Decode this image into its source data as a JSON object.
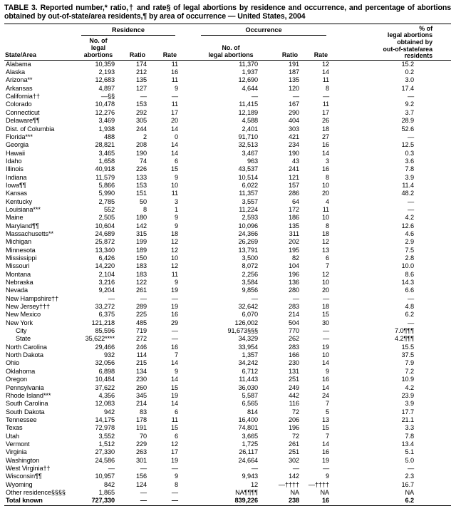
{
  "title": "TABLE 3. Reported number,* ratio,† and rate§ of legal abortions by residence and occurrence, and percentage of abortions obtained by out-of-state/area residents,¶ by area of occurrence — United States, 2004",
  "table": {
    "group_headers": {
      "residence": "Residence",
      "occurrence": "Occurrence"
    },
    "col_headers": {
      "state": "State/Area",
      "res_no": "No. of\nlegal abortions",
      "res_ratio": "Ratio",
      "res_rate": "Rate",
      "occ_no": "No. of\nlegal abortions",
      "occ_ratio": "Ratio",
      "occ_rate": "Rate",
      "pct": "% of\nlegal abortions\nobtained by\nout-of-state/area\nresidents"
    },
    "rows": [
      {
        "label": "Alabama",
        "values": [
          "10,359",
          "174",
          "11",
          "11,370",
          "191",
          "12",
          "15.2"
        ]
      },
      {
        "label": "Alaska",
        "values": [
          "2,193",
          "212",
          "16",
          "1,937",
          "187",
          "14",
          "0.2"
        ]
      },
      {
        "label": "Arizona**",
        "values": [
          "12,683",
          "135",
          "11",
          "12,690",
          "135",
          "11",
          "3.0"
        ]
      },
      {
        "label": "Arkansas",
        "values": [
          "4,897",
          "127",
          "9",
          "4,644",
          "120",
          "8",
          "17.4"
        ]
      },
      {
        "label": "California††",
        "values": [
          "—§§",
          "—",
          "—",
          "—",
          "—",
          "—",
          "—"
        ]
      },
      {
        "label": "Colorado",
        "values": [
          "10,478",
          "153",
          "11",
          "11,415",
          "167",
          "11",
          "9.2"
        ]
      },
      {
        "label": "Connecticut",
        "values": [
          "12,276",
          "292",
          "17",
          "12,189",
          "290",
          "17",
          "3.7"
        ]
      },
      {
        "label": "Delaware¶¶",
        "values": [
          "3,469",
          "305",
          "20",
          "4,588",
          "404",
          "26",
          "28.9"
        ]
      },
      {
        "label": "Dist. of Columbia",
        "values": [
          "1,938",
          "244",
          "14",
          "2,401",
          "303",
          "18",
          "52.6"
        ]
      },
      {
        "label": "Florida***",
        "values": [
          "488",
          "2",
          "0",
          "91,710",
          "421",
          "27",
          "—"
        ]
      },
      {
        "label": "Georgia",
        "values": [
          "28,821",
          "208",
          "14",
          "32,513",
          "234",
          "16",
          "12.5"
        ]
      },
      {
        "label": "Hawaii",
        "values": [
          "3,465",
          "190",
          "14",
          "3,467",
          "190",
          "14",
          "0.3"
        ]
      },
      {
        "label": "Idaho",
        "values": [
          "1,658",
          "74",
          "6",
          "963",
          "43",
          "3",
          "3.6"
        ]
      },
      {
        "label": "Illinois",
        "values": [
          "40,918",
          "226",
          "15",
          "43,537",
          "241",
          "16",
          "7.8"
        ]
      },
      {
        "label": "Indiana",
        "values": [
          "11,579",
          "133",
          "9",
          "10,514",
          "121",
          "8",
          "3.9"
        ]
      },
      {
        "label": "Iowa¶¶",
        "values": [
          "5,866",
          "153",
          "10",
          "6,022",
          "157",
          "10",
          "11.4"
        ]
      },
      {
        "label": "Kansas",
        "values": [
          "5,990",
          "151",
          "11",
          "11,357",
          "286",
          "20",
          "48.2"
        ]
      },
      {
        "label": "Kentucky",
        "values": [
          "2,785",
          "50",
          "3",
          "3,557",
          "64",
          "4",
          "—"
        ]
      },
      {
        "label": "Louisiana***",
        "values": [
          "552",
          "8",
          "1",
          "11,224",
          "172",
          "11",
          "—"
        ]
      },
      {
        "label": "Maine",
        "values": [
          "2,505",
          "180",
          "9",
          "2,593",
          "186",
          "10",
          "4.2"
        ]
      },
      {
        "label": "Maryland¶¶",
        "values": [
          "10,604",
          "142",
          "9",
          "10,096",
          "135",
          "8",
          "12.6"
        ]
      },
      {
        "label": "Massachusetts**",
        "values": [
          "24,689",
          "315",
          "18",
          "24,366",
          "311",
          "18",
          "4.6"
        ]
      },
      {
        "label": "Michigan",
        "values": [
          "25,872",
          "199",
          "12",
          "26,269",
          "202",
          "12",
          "2.9"
        ]
      },
      {
        "label": "Minnesota",
        "values": [
          "13,340",
          "189",
          "12",
          "13,791",
          "195",
          "13",
          "7.5"
        ]
      },
      {
        "label": "Mississippi",
        "values": [
          "6,426",
          "150",
          "10",
          "3,500",
          "82",
          "6",
          "2.8"
        ]
      },
      {
        "label": "Missouri",
        "values": [
          "14,220",
          "183",
          "12",
          "8,072",
          "104",
          "7",
          "10.0"
        ]
      },
      {
        "label": "Montana",
        "values": [
          "2,104",
          "183",
          "11",
          "2,256",
          "196",
          "12",
          "8.6"
        ]
      },
      {
        "label": "Nebraska",
        "values": [
          "3,216",
          "122",
          "9",
          "3,584",
          "136",
          "10",
          "14.3"
        ]
      },
      {
        "label": "Nevada",
        "values": [
          "9,204",
          "261",
          "19",
          "9,856",
          "280",
          "20",
          "6.6"
        ]
      },
      {
        "label": "New Hampshire††",
        "values": [
          "—",
          "—",
          "—",
          "—",
          "—",
          "—",
          "—"
        ]
      },
      {
        "label": "New Jersey†††",
        "values": [
          "33,272",
          "289",
          "19",
          "32,642",
          "283",
          "18",
          "4.8"
        ]
      },
      {
        "label": "New Mexico",
        "values": [
          "6,375",
          "225",
          "16",
          "6,070",
          "214",
          "15",
          "6.2"
        ]
      },
      {
        "label": "New York",
        "values": [
          "121,218",
          "485",
          "29",
          "126,002",
          "504",
          "30",
          "—"
        ]
      },
      {
        "label": "City",
        "indent": true,
        "values": [
          "85,596",
          "719",
          "—",
          "91,673§§§",
          "770",
          "—",
          "7.0¶¶¶"
        ]
      },
      {
        "label": "State",
        "indent": true,
        "values": [
          "35,622****",
          "272",
          "—",
          "34,329",
          "262",
          "—",
          "4.2¶¶¶"
        ]
      },
      {
        "label": "North Carolina",
        "values": [
          "29,466",
          "246",
          "16",
          "33,954",
          "283",
          "19",
          "15.5"
        ]
      },
      {
        "label": "North Dakota",
        "values": [
          "932",
          "114",
          "7",
          "1,357",
          "166",
          "10",
          "37.5"
        ]
      },
      {
        "label": "Ohio",
        "values": [
          "32,056",
          "215",
          "14",
          "34,242",
          "230",
          "14",
          "7.9"
        ]
      },
      {
        "label": "Oklahoma",
        "values": [
          "6,898",
          "134",
          "9",
          "6,712",
          "131",
          "9",
          "7.2"
        ]
      },
      {
        "label": "Oregon",
        "values": [
          "10,484",
          "230",
          "14",
          "11,443",
          "251",
          "16",
          "10.9"
        ]
      },
      {
        "label": "Pennsylvania",
        "values": [
          "37,622",
          "260",
          "15",
          "36,030",
          "249",
          "14",
          "4.2"
        ]
      },
      {
        "label": "Rhode Island***",
        "values": [
          "4,356",
          "345",
          "19",
          "5,587",
          "442",
          "24",
          "23.9"
        ]
      },
      {
        "label": "South Carolina",
        "values": [
          "12,083",
          "214",
          "14",
          "6,565",
          "116",
          "7",
          "3.9"
        ]
      },
      {
        "label": "South Dakota",
        "values": [
          "942",
          "83",
          "6",
          "814",
          "72",
          "5",
          "17.7"
        ]
      },
      {
        "label": "Tennessee",
        "values": [
          "14,175",
          "178",
          "11",
          "16,400",
          "206",
          "13",
          "21.1"
        ]
      },
      {
        "label": "Texas",
        "values": [
          "72,978",
          "191",
          "15",
          "74,801",
          "196",
          "15",
          "3.3"
        ]
      },
      {
        "label": "Utah",
        "values": [
          "3,552",
          "70",
          "6",
          "3,665",
          "72",
          "7",
          "7.8"
        ]
      },
      {
        "label": "Vermont",
        "values": [
          "1,512",
          "229",
          "12",
          "1,725",
          "261",
          "14",
          "13.4"
        ]
      },
      {
        "label": "Virginia",
        "values": [
          "27,330",
          "263",
          "17",
          "26,117",
          "251",
          "16",
          "5.1"
        ]
      },
      {
        "label": "Washington",
        "values": [
          "24,586",
          "301",
          "19",
          "24,664",
          "302",
          "19",
          "5.0"
        ]
      },
      {
        "label": "West Virginia††",
        "values": [
          "—",
          "—",
          "—",
          "—",
          "—",
          "—",
          "—"
        ]
      },
      {
        "label": "Wisconsin¶¶",
        "values": [
          "10,957",
          "156",
          "9",
          "9,943",
          "142",
          "9",
          "2.3"
        ]
      },
      {
        "label": "Wyoming",
        "values": [
          "842",
          "124",
          "8",
          "12",
          "—††††",
          "—††††",
          "16.7"
        ]
      },
      {
        "label": "Other residence§§§§",
        "values": [
          "1,865",
          "—",
          "—",
          "NA¶¶¶¶",
          "NA",
          "NA",
          "NA"
        ]
      },
      {
        "label": "Total known",
        "total": true,
        "values": [
          "727,330",
          "—",
          "—",
          "839,226",
          "238",
          "16",
          "6.2"
        ]
      }
    ]
  }
}
